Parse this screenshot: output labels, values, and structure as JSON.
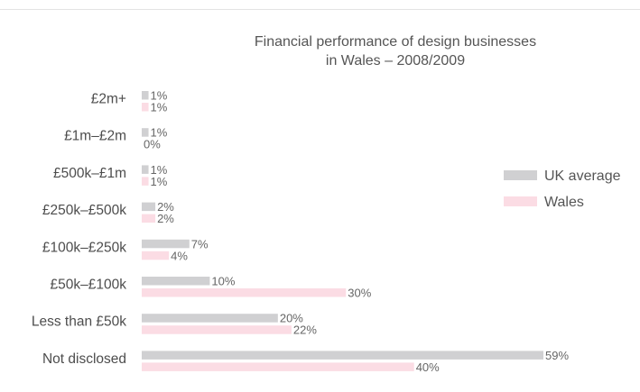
{
  "chart_data": {
    "type": "bar",
    "orientation": "horizontal",
    "title": "Financial performance of design businesses",
    "subtitle": "in Wales – 2008/2009",
    "categories": [
      "£2m+",
      "£1m–£2m",
      "£500k–£1m",
      "£250k–£500k",
      "£100k–£250k",
      "£50k–£100k",
      "Less than £50k",
      "Not disclosed"
    ],
    "series": [
      {
        "name": "UK average",
        "color": "#d0d0d2",
        "values": [
          1,
          1,
          1,
          2,
          7,
          10,
          20,
          59
        ],
        "labels": [
          "1%",
          "1%",
          "1%",
          "2%",
          "7%",
          "10%",
          "20%",
          "59%"
        ]
      },
      {
        "name": "Wales",
        "color": "#fbdce4",
        "values": [
          1,
          0,
          1,
          2,
          4,
          30,
          22,
          40
        ],
        "labels": [
          "1%",
          "0%",
          "1%",
          "2%",
          "4%",
          "30%",
          "22%",
          "40%"
        ]
      }
    ],
    "xlim": [
      0,
      59
    ],
    "grid": false,
    "legend_position": "right"
  }
}
